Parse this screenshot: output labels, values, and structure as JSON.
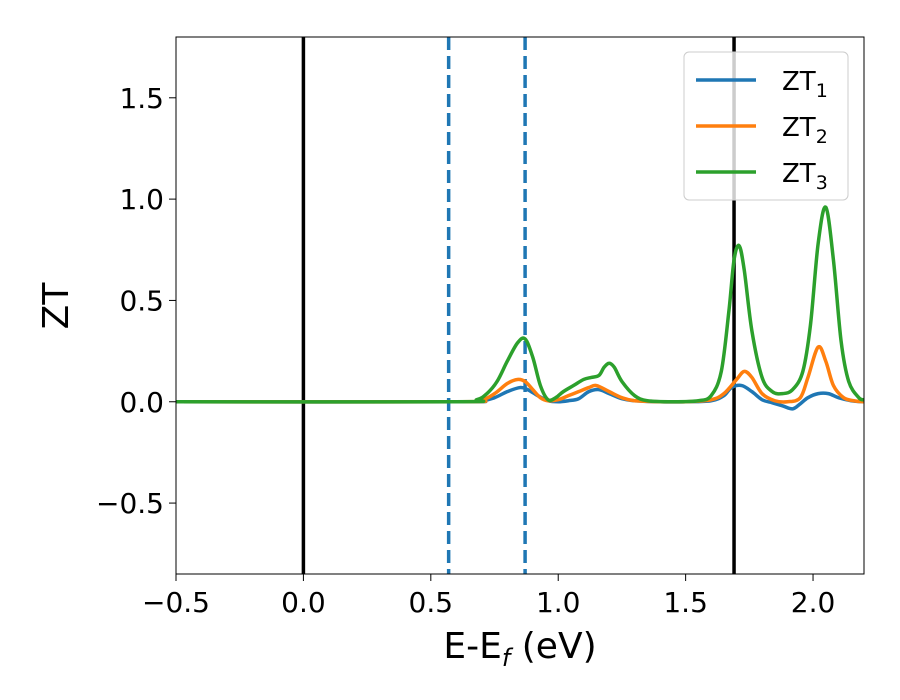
{
  "chart_data": {
    "type": "line",
    "title": "",
    "xlabel": {
      "main": "E-E",
      "sub": "f",
      "suffix": " (eV)"
    },
    "ylabel": "ZT",
    "xlim": [
      -0.5,
      2.2
    ],
    "ylim": [
      -0.85,
      1.8
    ],
    "xticks": [
      -0.5,
      0.0,
      0.5,
      1.0,
      1.5,
      2.0
    ],
    "xtick_labels": [
      "−0.5",
      "0.0",
      "0.5",
      "1.0",
      "1.5",
      "2.0"
    ],
    "yticks": [
      -0.5,
      0.0,
      0.5,
      1.0,
      1.5
    ],
    "ytick_labels": [
      "−0.5",
      "0.0",
      "0.5",
      "1.0",
      "1.5"
    ],
    "grid": false,
    "legend_position": "top-right",
    "vlines": [
      {
        "x": 0.0,
        "style": "solid",
        "color": "#000000"
      },
      {
        "x": 1.69,
        "style": "solid",
        "color": "#000000"
      },
      {
        "x": 0.57,
        "style": "dashed",
        "color": "#1f77b4"
      },
      {
        "x": 0.87,
        "style": "dashed",
        "color": "#1f77b4"
      }
    ],
    "series": [
      {
        "name": "ZT",
        "sub": "1",
        "color": "#1f77b4",
        "x": [
          -0.5,
          0.6,
          0.7,
          0.75,
          0.8,
          0.85,
          0.88,
          0.92,
          0.96,
          1.0,
          1.04,
          1.08,
          1.12,
          1.16,
          1.2,
          1.25,
          1.3,
          1.4,
          1.5,
          1.6,
          1.65,
          1.68,
          1.72,
          1.76,
          1.8,
          1.84,
          1.88,
          1.92,
          1.95,
          1.98,
          2.02,
          2.06,
          2.1,
          2.15,
          2.2
        ],
        "y": [
          0.0,
          0.0,
          0.005,
          0.02,
          0.05,
          0.07,
          0.06,
          0.03,
          0.005,
          0.0,
          0.005,
          0.015,
          0.05,
          0.06,
          0.04,
          0.015,
          0.005,
          0.0,
          0.0,
          0.005,
          0.03,
          0.07,
          0.08,
          0.05,
          0.01,
          -0.005,
          -0.02,
          -0.035,
          -0.01,
          0.02,
          0.04,
          0.04,
          0.02,
          0.005,
          0.0
        ]
      },
      {
        "name": "ZT",
        "sub": "2",
        "color": "#ff7f0e",
        "x": [
          -0.5,
          0.6,
          0.7,
          0.75,
          0.8,
          0.84,
          0.87,
          0.9,
          0.93,
          0.96,
          1.0,
          1.04,
          1.08,
          1.12,
          1.15,
          1.2,
          1.25,
          1.3,
          1.4,
          1.5,
          1.6,
          1.65,
          1.7,
          1.73,
          1.76,
          1.8,
          1.85,
          1.9,
          1.95,
          1.98,
          2.02,
          2.05,
          2.08,
          2.12,
          2.16,
          2.2
        ],
        "y": [
          0.0,
          0.0,
          0.01,
          0.04,
          0.09,
          0.11,
          0.1,
          0.06,
          0.02,
          0.005,
          0.01,
          0.03,
          0.05,
          0.07,
          0.08,
          0.05,
          0.02,
          0.005,
          0.0,
          0.0,
          0.01,
          0.04,
          0.11,
          0.15,
          0.12,
          0.04,
          0.005,
          0.0,
          0.02,
          0.12,
          0.27,
          0.2,
          0.08,
          0.02,
          0.005,
          0.0
        ]
      },
      {
        "name": "ZT",
        "sub": "3",
        "color": "#2ca02c",
        "x": [
          -0.5,
          0.6,
          0.68,
          0.72,
          0.76,
          0.8,
          0.84,
          0.87,
          0.9,
          0.93,
          0.96,
          0.99,
          1.02,
          1.06,
          1.1,
          1.13,
          1.16,
          1.18,
          1.2,
          1.22,
          1.25,
          1.3,
          1.35,
          1.45,
          1.55,
          1.6,
          1.64,
          1.67,
          1.69,
          1.71,
          1.73,
          1.76,
          1.8,
          1.84,
          1.88,
          1.92,
          1.96,
          1.99,
          2.02,
          2.05,
          2.08,
          2.11,
          2.14,
          2.18,
          2.2
        ],
        "y": [
          0.0,
          0.0,
          0.01,
          0.04,
          0.1,
          0.2,
          0.29,
          0.31,
          0.22,
          0.08,
          0.01,
          0.02,
          0.05,
          0.08,
          0.11,
          0.12,
          0.13,
          0.17,
          0.19,
          0.17,
          0.1,
          0.03,
          0.005,
          0.0,
          0.005,
          0.03,
          0.15,
          0.45,
          0.7,
          0.77,
          0.65,
          0.35,
          0.12,
          0.05,
          0.04,
          0.06,
          0.15,
          0.38,
          0.78,
          0.96,
          0.7,
          0.3,
          0.1,
          0.02,
          0.01
        ]
      }
    ]
  }
}
